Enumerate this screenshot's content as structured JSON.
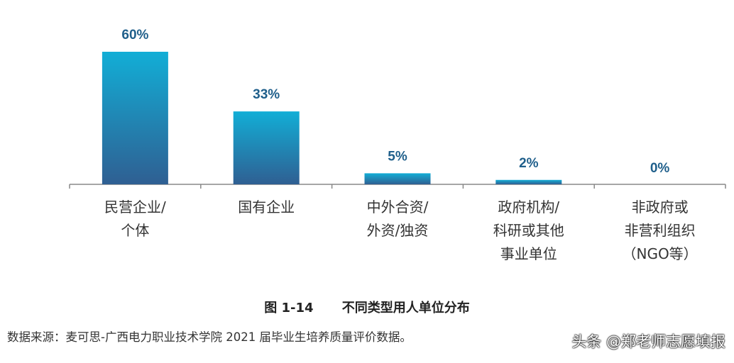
{
  "chart_data": {
    "type": "bar",
    "categories": [
      [
        "民营企业/",
        "个体"
      ],
      [
        "国有企业"
      ],
      [
        "中外合资/",
        "外资/独资"
      ],
      [
        "政府机构/",
        "科研或其他",
        "事业单位"
      ],
      [
        "非政府或",
        "非营利组织",
        "（NGO等）"
      ]
    ],
    "values": [
      60,
      33,
      5,
      2,
      0
    ],
    "value_labels": [
      "60%",
      "33%",
      "5%",
      "2%",
      "0%"
    ],
    "ylim": [
      0,
      60
    ],
    "grid": false,
    "legend": "none",
    "colors": {
      "bar_top": "#12aed6",
      "bar_bottom": "#2f5f92",
      "value_text": "#1f5f8b",
      "axis": "#888888"
    }
  },
  "caption": {
    "figure_number": "图 1-14",
    "title": "不同类型用人单位分布"
  },
  "source_note": "数据来源：麦可思-广西电力职业技术学院 2021 届毕业生培养质量评价数据。",
  "watermark": "头条 @郑老师志愿填报"
}
